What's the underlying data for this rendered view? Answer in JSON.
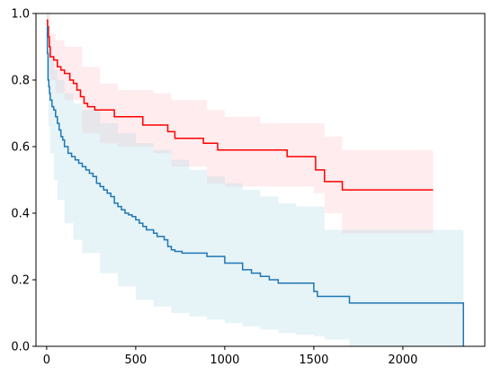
{
  "chart_data": {
    "type": "line",
    "title": "",
    "xlabel": "",
    "ylabel": "",
    "xlim": [
      -60,
      2460
    ],
    "ylim": [
      0,
      1
    ],
    "x_ticks": [
      0,
      500,
      1000,
      1500,
      2000
    ],
    "y_ticks": [
      0.0,
      0.2,
      0.4,
      0.6,
      0.8,
      1.0
    ],
    "x_tick_labels": [
      "0",
      "500",
      "1000",
      "1500",
      "2000"
    ],
    "y_tick_labels": [
      "0.0",
      "0.2",
      "0.4",
      "0.6",
      "0.8",
      "1.0"
    ],
    "grid": false,
    "legend": "none",
    "series": [
      {
        "color": "#ff0000",
        "band_color": "#ffc0c8",
        "step_x": [
          0,
          5,
          10,
          15,
          20,
          40,
          60,
          80,
          100,
          130,
          150,
          170,
          190,
          210,
          230,
          270,
          380,
          540,
          680,
          720,
          880,
          960,
          1350,
          1510,
          1560,
          1660,
          2170
        ],
        "step_y": [
          0.98,
          0.96,
          0.93,
          0.9,
          0.87,
          0.86,
          0.84,
          0.83,
          0.82,
          0.8,
          0.79,
          0.77,
          0.75,
          0.73,
          0.72,
          0.71,
          0.69,
          0.665,
          0.645,
          0.625,
          0.61,
          0.59,
          0.57,
          0.53,
          0.495,
          0.47,
          0.47
        ],
        "band_x": [
          0,
          20,
          50,
          100,
          200,
          300,
          400,
          600,
          700,
          900,
          1000,
          1200,
          1500,
          1560,
          1660,
          2170
        ],
        "band_upper": [
          1.0,
          0.94,
          0.92,
          0.9,
          0.84,
          0.79,
          0.77,
          0.76,
          0.74,
          0.71,
          0.69,
          0.67,
          0.67,
          0.63,
          0.59,
          0.59
        ],
        "band_lower": [
          0.92,
          0.8,
          0.76,
          0.74,
          0.64,
          0.61,
          0.6,
          0.58,
          0.54,
          0.49,
          0.48,
          0.48,
          0.46,
          0.4,
          0.34,
          0.34
        ]
      },
      {
        "color": "#1f77b4",
        "band_color": "#add8e6",
        "step_x": [
          0,
          4,
          8,
          12,
          16,
          20,
          30,
          40,
          50,
          60,
          70,
          80,
          90,
          100,
          120,
          140,
          160,
          180,
          200,
          220,
          240,
          260,
          280,
          300,
          320,
          340,
          360,
          380,
          400,
          420,
          440,
          460,
          480,
          500,
          520,
          540,
          560,
          600,
          620,
          660,
          680,
          700,
          720,
          760,
          860,
          900,
          1000,
          1100,
          1150,
          1200,
          1250,
          1300,
          1500,
          1520,
          1600,
          1700,
          2340
        ],
        "step_y": [
          0.96,
          0.88,
          0.8,
          0.78,
          0.76,
          0.74,
          0.72,
          0.71,
          0.69,
          0.67,
          0.65,
          0.63,
          0.62,
          0.6,
          0.58,
          0.57,
          0.56,
          0.55,
          0.54,
          0.53,
          0.52,
          0.51,
          0.49,
          0.48,
          0.47,
          0.46,
          0.45,
          0.43,
          0.42,
          0.41,
          0.4,
          0.395,
          0.39,
          0.38,
          0.37,
          0.36,
          0.35,
          0.34,
          0.33,
          0.32,
          0.3,
          0.29,
          0.285,
          0.28,
          0.28,
          0.27,
          0.25,
          0.23,
          0.22,
          0.21,
          0.2,
          0.19,
          0.165,
          0.15,
          0.15,
          0.13,
          0.0
        ],
        "band_x": [
          0,
          10,
          20,
          40,
          60,
          100,
          150,
          200,
          300,
          400,
          500,
          600,
          700,
          800,
          900,
          1000,
          1100,
          1200,
          1300,
          1400,
          1500,
          1560,
          1700,
          2340
        ],
        "band_upper": [
          1.0,
          0.93,
          0.87,
          0.83,
          0.8,
          0.76,
          0.73,
          0.71,
          0.67,
          0.64,
          0.61,
          0.59,
          0.56,
          0.53,
          0.51,
          0.49,
          0.47,
          0.45,
          0.43,
          0.42,
          0.42,
          0.35,
          0.35,
          0.35
        ],
        "band_lower": [
          0.8,
          0.66,
          0.58,
          0.5,
          0.44,
          0.37,
          0.32,
          0.28,
          0.22,
          0.18,
          0.14,
          0.12,
          0.1,
          0.09,
          0.08,
          0.07,
          0.06,
          0.05,
          0.04,
          0.035,
          0.03,
          0.02,
          0.0,
          0.0
        ]
      }
    ]
  }
}
